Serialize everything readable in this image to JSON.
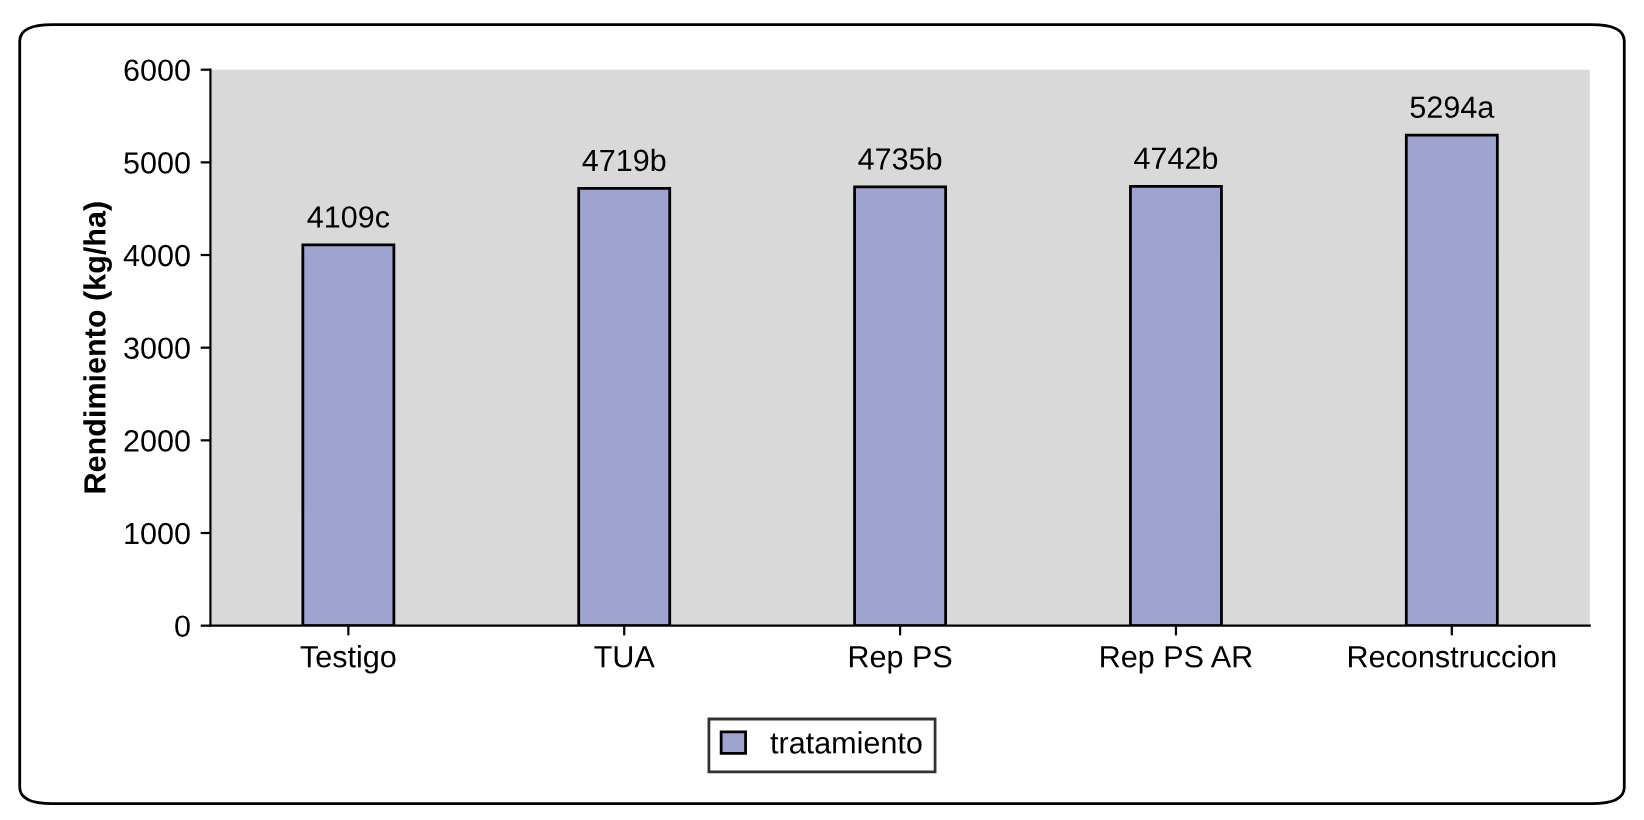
{
  "chart_data": {
    "type": "bar",
    "ylabel": "Rendimiento (kg/ha)",
    "categories": [
      "Testigo",
      "TUA",
      "Rep PS",
      "Rep PS AR",
      "Reconstruccion"
    ],
    "series": [
      {
        "name": "tratamiento",
        "color": "#9fa3d0",
        "values": [
          4109,
          4719,
          4735,
          4742,
          5294
        ],
        "value_labels": [
          "4109c",
          "4719b",
          "4735b",
          "4742b",
          "5294a"
        ]
      }
    ],
    "ylim": [
      0,
      6000
    ],
    "yticks": [
      0,
      1000,
      2000,
      3000,
      4000,
      5000,
      6000
    ],
    "grid": false,
    "legend": "bottom"
  }
}
